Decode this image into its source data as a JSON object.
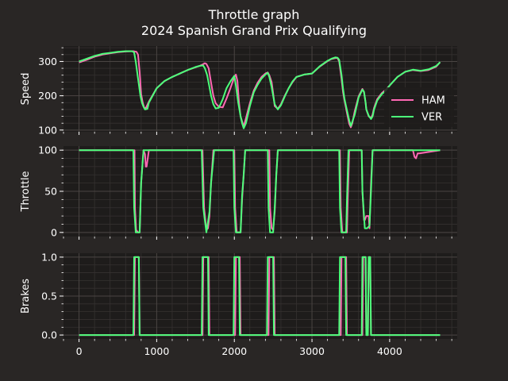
{
  "title_line1": "Throttle graph",
  "title_line2": "2024 Spanish Grand Prix Qualifying",
  "colors": {
    "background": "#292625",
    "panel": "#1e1c1b",
    "grid_major": "#4a4543",
    "grid_minor": "#353130",
    "HAM": "#ff69b4",
    "VER": "#4cff7a"
  },
  "chart_data": {
    "type": "line",
    "x_ticks": [
      0,
      1000,
      2000,
      3000,
      4000
    ],
    "xlim": [
      -200,
      4870
    ],
    "legend": {
      "placement": "lower-right of Speed panel",
      "entries": [
        "HAM",
        "VER"
      ]
    },
    "panels": [
      {
        "ylabel": "Speed",
        "ylim": [
          95,
          345
        ],
        "y_ticks": [
          100,
          200,
          300
        ],
        "series": [
          {
            "name": "HAM",
            "x": [
              0,
              100,
              200,
              300,
              400,
              500,
              600,
              700,
              740,
              760,
              780,
              800,
              820,
              840,
              860,
              900,
              1000,
              1100,
              1200,
              1300,
              1400,
              1500,
              1550,
              1600,
              1620,
              1640,
              1670,
              1700,
              1730,
              1760,
              1800,
              1850,
              1900,
              1950,
              1980,
              2000,
              2020,
              2040,
              2060,
              2080,
              2100,
              2120,
              2150,
              2200,
              2250,
              2300,
              2350,
              2400,
              2430,
              2450,
              2480,
              2500,
              2520,
              2560,
              2600,
              2650,
              2700,
              2750,
              2800,
              2900,
              3000,
              3100,
              3200,
              3250,
              3300,
              3330,
              3350,
              3380,
              3400,
              3420,
              3450,
              3480,
              3500,
              3520,
              3550,
              3600,
              3650,
              3670,
              3690,
              3700,
              3730,
              3760,
              3780,
              3800,
              3840,
              3900,
              3950,
              4000,
              4100,
              4200,
              4300,
              4400,
              4500,
              4600,
              4650
            ],
            "y": [
              297,
              305,
              314,
              320,
              324,
              327,
              329,
              330,
              328,
              320,
              270,
              205,
              180,
              165,
              164,
              183,
              222,
              243,
              255,
              265,
              275,
              283,
              287,
              292,
              295,
              293,
              280,
              238,
              200,
              178,
              168,
              166,
              192,
              222,
              242,
              255,
              262,
              243,
              180,
              140,
              125,
              110,
              135,
              178,
              215,
              238,
              255,
              265,
              268,
              260,
              240,
              208,
              170,
              162,
              175,
              200,
              222,
              240,
              255,
              262,
              265,
              285,
              301,
              307,
              310,
              310,
              300,
              250,
              210,
              185,
              150,
              118,
              108,
              120,
              155,
              198,
              220,
              210,
              180,
              160,
              140,
              135,
              145,
              165,
              190,
              208,
              218,
              230,
              255,
              270,
              275,
              272,
              275,
              285,
              298
            ]
          },
          {
            "name": "VER",
            "x": [
              0,
              100,
              200,
              300,
              400,
              500,
              600,
              680,
              700,
              710,
              730,
              760,
              790,
              810,
              830,
              850,
              880,
              900,
              1000,
              1100,
              1200,
              1300,
              1400,
              1500,
              1550,
              1580,
              1600,
              1620,
              1650,
              1680,
              1700,
              1730,
              1760,
              1800,
              1850,
              1900,
              1950,
              1980,
              2000,
              2020,
              2050,
              2080,
              2100,
              2120,
              2150,
              2200,
              2250,
              2300,
              2350,
              2400,
              2430,
              2450,
              2480,
              2520,
              2560,
              2600,
              2650,
              2700,
              2750,
              2800,
              2900,
              3000,
              3100,
              3200,
              3250,
              3300,
              3330,
              3350,
              3380,
              3400,
              3420,
              3450,
              3480,
              3500,
              3550,
              3600,
              3650,
              3670,
              3690,
              3700,
              3730,
              3760,
              3780,
              3800,
              3840,
              3900,
              3950,
              4000,
              4100,
              4200,
              4300,
              4400,
              4500,
              4600,
              4650
            ],
            "y": [
              300,
              308,
              316,
              322,
              325,
              328,
              330,
              330,
              328,
              326,
              300,
              250,
              200,
              180,
              168,
              160,
              162,
              180,
              222,
              243,
              255,
              265,
              275,
              284,
              287,
              288,
              288,
              280,
              260,
              225,
              200,
              175,
              163,
              165,
              190,
              222,
              242,
              252,
              258,
              230,
              180,
              140,
              120,
              105,
              120,
              170,
              210,
              232,
              250,
              262,
              267,
              255,
              225,
              175,
              160,
              172,
              198,
              222,
              242,
              255,
              262,
              265,
              286,
              302,
              308,
              312,
              311,
              305,
              262,
              220,
              190,
              158,
              128,
              112,
              145,
              195,
              218,
              212,
              180,
              160,
              142,
              132,
              140,
              160,
              186,
              205,
              215,
              230,
              255,
              270,
              276,
              273,
              277,
              287,
              298
            ]
          }
        ]
      },
      {
        "ylabel": "Throttle",
        "ylim": [
          -5,
          105
        ],
        "y_ticks": [
          0,
          50,
          100
        ],
        "series": [
          {
            "name": "HAM",
            "x": [
              0,
              715,
              720,
              735,
              760,
              780,
              800,
              830,
              850,
              860,
              870,
              900,
              1000,
              1590,
              1610,
              1640,
              1660,
              1680,
              1700,
              1730,
              1760,
              1800,
              2000,
              2010,
              2030,
              2080,
              2100,
              2120,
              2140,
              2160,
              2450,
              2460,
              2480,
              2500,
              2520,
              2540,
              2560,
              3360,
              3370,
              3390,
              3450,
              3460,
              3480,
              3640,
              3650,
              3670,
              3680,
              3700,
              3730,
              3740,
              3760,
              3780,
              3800,
              3830,
              4300,
              4320,
              4340,
              4360,
              4380,
              4650
            ],
            "y": [
              100,
              100,
              30,
              3,
              0,
              0,
              60,
              100,
              95,
              80,
              80,
              100,
              100,
              100,
              30,
              3,
              5,
              20,
              60,
              100,
              100,
              100,
              100,
              30,
              0,
              0,
              40,
              70,
              100,
              100,
              100,
              30,
              5,
              3,
              25,
              70,
              100,
              100,
              30,
              0,
              0,
              40,
              100,
              100,
              50,
              15,
              15,
              20,
              20,
              5,
              60,
              100,
              100,
              100,
              100,
              92,
              90,
              96,
              96,
              100
            ]
          },
          {
            "name": "VER",
            "x": [
              0,
              700,
              710,
              730,
              780,
              800,
              830,
              1000,
              1580,
              1600,
              1640,
              1680,
              1700,
              1740,
              1800,
              1990,
              2000,
              2020,
              2080,
              2100,
              2120,
              2140,
              2160,
              2430,
              2440,
              2460,
              2500,
              2520,
              2540,
              2560,
              3350,
              3360,
              3380,
              3440,
              3450,
              3470,
              3640,
              3650,
              3680,
              3710,
              3740,
              3760,
              3780,
              3800,
              4650
            ],
            "y": [
              100,
              100,
              30,
              0,
              0,
              60,
              100,
              100,
              100,
              30,
              0,
              25,
              60,
              100,
              100,
              100,
              30,
              0,
              0,
              45,
              70,
              100,
              100,
              100,
              30,
              0,
              0,
              30,
              70,
              100,
              100,
              30,
              0,
              0,
              40,
              100,
              100,
              50,
              5,
              5,
              8,
              50,
              100,
              100,
              100
            ]
          }
        ]
      },
      {
        "ylabel": "Brakes",
        "ylim": [
          -0.05,
          1.05
        ],
        "y_ticks": [
          0.0,
          0.5,
          1.0
        ],
        "series": [
          {
            "name": "HAM",
            "x": [
              0,
              710,
              720,
              770,
              780,
              1590,
              1600,
              1670,
              1680,
              2010,
              2020,
              2070,
              2080,
              2440,
              2450,
              2510,
              2520,
              3370,
              3380,
              3440,
              3450,
              3650,
              3660,
              3690,
              3700,
              3720,
              3730,
              3750,
              3760,
              4650
            ],
            "y": [
              0,
              0,
              1,
              1,
              0,
              0,
              1,
              1,
              0,
              0,
              1,
              1,
              0,
              0,
              1,
              1,
              0,
              0,
              1,
              1,
              0,
              0,
              1,
              1,
              0,
              0,
              1,
              1,
              0,
              0
            ]
          },
          {
            "name": "VER",
            "x": [
              0,
              700,
              710,
              770,
              780,
              1580,
              1590,
              1660,
              1670,
              1990,
              2000,
              2060,
              2070,
              2420,
              2430,
              2500,
              2510,
              3350,
              3360,
              3430,
              3440,
              3640,
              3650,
              3690,
              3700,
              3720,
              3730,
              3750,
              3760,
              4650
            ],
            "y": [
              0,
              0,
              1,
              1,
              0,
              0,
              1,
              1,
              0,
              0,
              1,
              1,
              0,
              0,
              1,
              1,
              0,
              0,
              1,
              1,
              0,
              0,
              1,
              1,
              0,
              0,
              1,
              1,
              0,
              0
            ]
          }
        ]
      }
    ]
  }
}
